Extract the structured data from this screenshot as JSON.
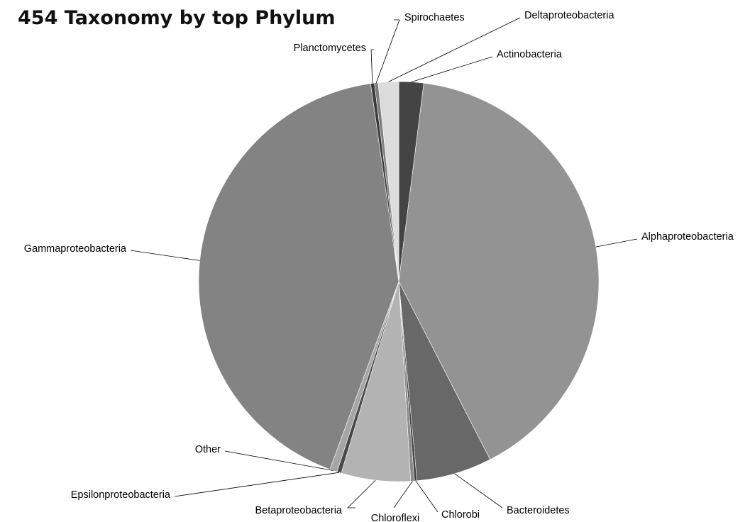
{
  "chart_data": {
    "type": "pie",
    "title": "454 Taxonomy by top Phylum",
    "legend": "none",
    "slices": [
      {
        "label": "Actinobacteria",
        "value": 2.0,
        "color": "#444444"
      },
      {
        "label": "Alphaproteobacteria",
        "value": 40.5,
        "color": "#939393"
      },
      {
        "label": "Bacteroidetes",
        "value": 6.1,
        "color": "#686868"
      },
      {
        "label": "Chlorobi",
        "value": 0.2,
        "color": "#3f3f3f"
      },
      {
        "label": "Chloroflexi",
        "value": 0.3,
        "color": "#8a8a8a"
      },
      {
        "label": "Betaproteobacteria",
        "value": 5.6,
        "color": "#b3b3b3"
      },
      {
        "label": "Epsilonproteobacteria",
        "value": 0.35,
        "color": "#4a4a4a"
      },
      {
        "label": "Other",
        "value": 0.6,
        "color": "#a6a6a6"
      },
      {
        "label": "Gammaproteobacteria",
        "value": 42.2,
        "color": "#838383"
      },
      {
        "label": "Planctomycetes",
        "value": 0.3,
        "color": "#3b3b3b"
      },
      {
        "label": "Spirochaetes",
        "value": 0.3,
        "color": "#7e7e7e"
      },
      {
        "label": "Deltaproteobacteria",
        "value": 1.65,
        "color": "#dcdcdc"
      }
    ]
  }
}
